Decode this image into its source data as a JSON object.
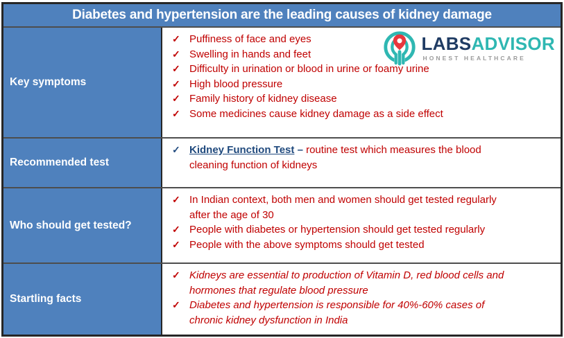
{
  "colors": {
    "blue": "#4F81BD",
    "red": "#C00000",
    "navy": "#1F497D",
    "logo-navy": "#1F3B63",
    "teal": "#2FB7B2",
    "pin-red": "#E8373D",
    "tagline-gray": "#9B9B9B",
    "border-dark": "#262626",
    "border-inner": "#4D4D4D"
  },
  "icons": {
    "check": "✓",
    "logo_icon": "hands-ring-with-map-pin-icon"
  },
  "header": {
    "title": "Diabetes and hypertension are the leading causes of kidney damage"
  },
  "logo": {
    "labs": "LABS",
    "advisor": "ADVISOR",
    "tagline": "HONEST HEALTHCARE"
  },
  "rows": [
    {
      "label": "Key symptoms",
      "check_color": "red",
      "italic": false,
      "items": [
        {
          "text": "Puffiness of face and eyes"
        },
        {
          "text": "Swelling in hands and feet"
        },
        {
          "text": "Difficulty in urination or blood in urine or foamy urine"
        },
        {
          "text": "High blood pressure"
        },
        {
          "text": "Family history of kidney disease"
        },
        {
          "text": "Some medicines cause kidney damage as a side effect"
        }
      ]
    },
    {
      "label": "Recommended test",
      "check_color": "navy",
      "italic": false,
      "items": [
        {
          "link": "Kidney Function Test",
          "dash": " – ",
          "text": "routine test which measures the blood\ncleaning function of kidneys"
        }
      ]
    },
    {
      "label": "Who should get tested?",
      "check_color": "red",
      "italic": false,
      "items": [
        {
          "text": "In Indian context, both men and women should get tested regularly\nafter the age of 30"
        },
        {
          "text": "People with diabetes or hypertension should get tested regularly"
        },
        {
          "text": "People with the above symptoms should get tested"
        }
      ]
    },
    {
      "label": "Startling facts",
      "check_color": "red",
      "italic": true,
      "items": [
        {
          "text": "Kidneys are essential to production of Vitamin D, red blood cells and\nhormones that regulate blood pressure"
        },
        {
          "text": "Diabetes and hypertension is responsible for 40%-60% cases of\nchronic kidney dysfunction in India"
        }
      ]
    }
  ]
}
